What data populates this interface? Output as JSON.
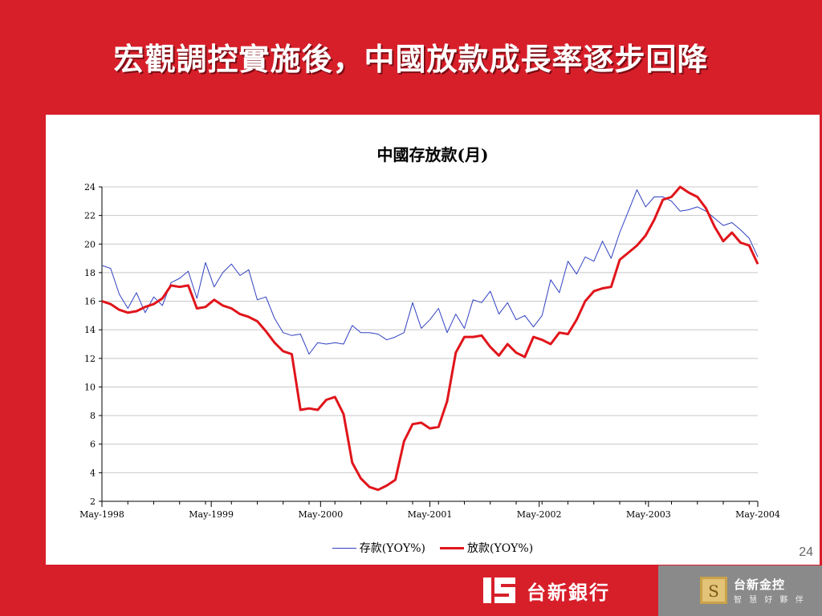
{
  "slide": {
    "title": "宏觀調控實施後，中國放款成長率逐步回降",
    "page_number": "24"
  },
  "footer": {
    "bank_name": "台新銀行",
    "holding_name": "台新金控",
    "holding_slogan": "智 慧 好 夥 伴"
  },
  "colors": {
    "background": "#d71f2a",
    "deposits": "#3040c0",
    "loans": "#e0151b"
  },
  "chart_data": {
    "type": "line",
    "title": "中國存放款(月)",
    "ylim": [
      2,
      24
    ],
    "yticks": [
      2,
      4,
      6,
      8,
      10,
      12,
      14,
      16,
      18,
      20,
      22,
      24
    ],
    "x_tick_labels": [
      "May-1998",
      "May-1999",
      "May-2000",
      "May-2001",
      "May-2002",
      "May-2003",
      "May-2004"
    ],
    "grid": true,
    "legend_position": "bottom",
    "series": [
      {
        "name": "存款(YOY%)",
        "values": [
          18.5,
          18.3,
          16.5,
          15.5,
          16.6,
          15.2,
          16.3,
          15.7,
          17.3,
          17.6,
          18.1,
          16.2,
          18.7,
          17.0,
          18.0,
          18.6,
          17.8,
          18.2,
          16.1,
          16.3,
          14.8,
          13.8,
          13.6,
          13.7,
          12.3,
          13.1,
          13.0,
          13.1,
          13.0,
          14.3,
          13.8,
          13.8,
          13.7,
          13.3,
          13.5,
          13.8,
          15.9,
          14.1,
          14.7,
          15.5,
          13.8,
          15.1,
          14.1,
          16.1,
          15.9,
          16.7,
          15.1,
          15.9,
          14.7,
          15.0,
          14.2,
          15.0,
          17.5,
          16.6,
          18.8,
          17.9,
          19.1,
          18.8,
          20.2,
          19.0,
          20.8,
          22.3,
          23.8,
          22.6,
          23.3,
          23.3,
          23.0,
          22.3,
          22.4,
          22.6,
          22.3,
          21.8,
          21.3,
          21.5,
          21.0,
          20.4,
          19.1
        ]
      },
      {
        "name": "放款(YOY%)",
        "values": [
          16.0,
          15.8,
          15.4,
          15.2,
          15.3,
          15.6,
          15.8,
          16.2,
          17.1,
          17.0,
          17.1,
          15.5,
          15.6,
          16.1,
          15.7,
          15.5,
          15.1,
          14.9,
          14.6,
          13.9,
          13.1,
          12.5,
          12.3,
          8.4,
          8.5,
          8.4,
          9.1,
          9.3,
          8.1,
          4.7,
          3.6,
          3.0,
          2.8,
          3.1,
          3.5,
          6.2,
          7.4,
          7.5,
          7.1,
          7.2,
          9.0,
          12.4,
          13.5,
          13.5,
          13.6,
          12.8,
          12.2,
          13.0,
          12.4,
          12.1,
          13.5,
          13.3,
          13.0,
          13.8,
          13.7,
          14.7,
          16.0,
          16.7,
          16.9,
          17.0,
          18.9,
          19.4,
          19.9,
          20.6,
          21.7,
          23.1,
          23.3,
          24.0,
          23.6,
          23.3,
          22.5,
          21.2,
          20.2,
          20.8,
          20.1,
          19.9,
          18.6
        ]
      }
    ]
  }
}
